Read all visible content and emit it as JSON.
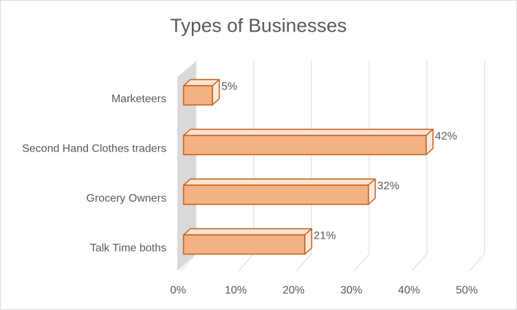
{
  "chart_data": {
    "type": "bar3d",
    "orientation": "horizontal",
    "title": "Types of Businesses",
    "categories": [
      "Marketeers",
      "Second Hand Clothes traders",
      "Grocery Owners",
      "Talk Time boths"
    ],
    "values": [
      5,
      42,
      32,
      21
    ],
    "value_labels": [
      "5%",
      "42%",
      "32%",
      "21%"
    ],
    "color": "#f4b183",
    "edge_color": "#c55a11",
    "xlim": [
      0,
      50
    ],
    "xticks": [
      {
        "value": 0,
        "label": "0%"
      },
      {
        "value": 10,
        "label": "10%"
      },
      {
        "value": 20,
        "label": "20%"
      },
      {
        "value": 30,
        "label": "30%"
      },
      {
        "value": 40,
        "label": "40%"
      },
      {
        "value": 50,
        "label": "50%"
      }
    ],
    "grid": true
  }
}
